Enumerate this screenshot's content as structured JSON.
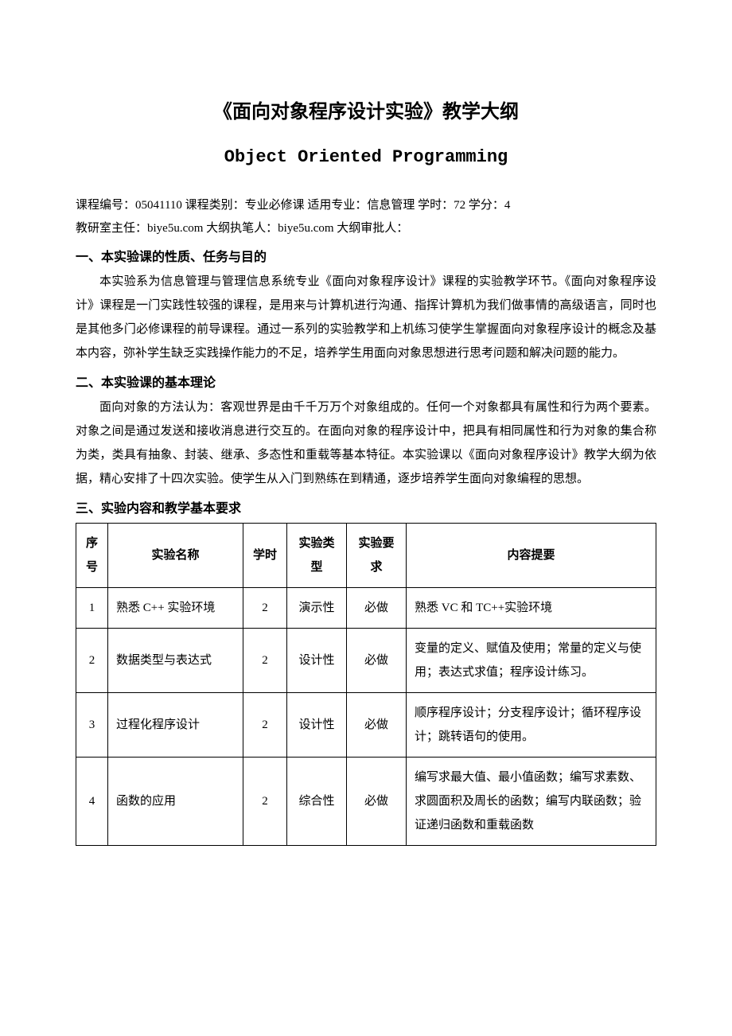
{
  "title_main": "《面向对象程序设计实验》教学大纲",
  "title_sub": "Object Oriented Programming",
  "meta": {
    "line1": "课程编号：05041110   课程类别：专业必修课   适用专业：信息管理  学时：72     学分：4",
    "line2": "教研室主任：biye5u.com  大纲执笔人：biye5u.com     大纲审批人："
  },
  "sections": {
    "s1": {
      "heading": "一、本实验课的性质、任务与目的",
      "body": "本实验系为信息管理与管理信息系统专业《面向对象程序设计》课程的实验教学环节。《面向对象程序设计》课程是一门实践性较强的课程，是用来与计算机进行沟通、指挥计算机为我们做事情的高级语言，同时也是其他多门必修课程的前导课程。通过一系列的实验教学和上机练习使学生掌握面向对象程序设计的概念及基本内容，弥补学生缺乏实践操作能力的不足，培养学生用面向对象思想进行思考问题和解决问题的能力。"
    },
    "s2": {
      "heading": "二、本实验课的基本理论",
      "body": "面向对象的方法认为：客观世界是由千千万万个对象组成的。任何一个对象都具有属性和行为两个要素。对象之间是通过发送和接收消息进行交互的。在面向对象的程序设计中，把具有相同属性和行为对象的集合称为类，类具有抽象、封装、继承、多态性和重载等基本特征。本实验课以《面向对象程序设计》教学大纲为依据，精心安排了十四次实验。使学生从入门到熟练在到精通，逐步培养学生面向对象编程的思想。"
    },
    "s3": {
      "heading": "三、实验内容和教学基本要求"
    }
  },
  "table": {
    "headers": {
      "num": "序号",
      "name": "实验名称",
      "hours": "学时",
      "type": "实验类型",
      "req": "实验要求",
      "content": "内容提要"
    },
    "rows": [
      {
        "num": "1",
        "name": "熟悉 C++ 实验环境",
        "hours": "2",
        "type": "演示性",
        "req": "必做",
        "content": "熟悉 VC 和 TC++实验环境"
      },
      {
        "num": "2",
        "name": "数据类型与表达式",
        "hours": "2",
        "type": "设计性",
        "req": "必做",
        "content": "变量的定义、赋值及使用；常量的定义与使用；表达式求值；程序设计练习。"
      },
      {
        "num": "3",
        "name": "过程化程序设计",
        "hours": "2",
        "type": "设计性",
        "req": "必做",
        "content": "顺序程序设计；分支程序设计；循环程序设计；跳转语句的使用。"
      },
      {
        "num": "4",
        "name": "函数的应用",
        "hours": "2",
        "type": "综合性",
        "req": "必做",
        "content": "编写求最大值、最小值函数；编写求素数、求圆面积及周长的函数；编写内联函数；验证递归函数和重载函数"
      }
    ]
  }
}
